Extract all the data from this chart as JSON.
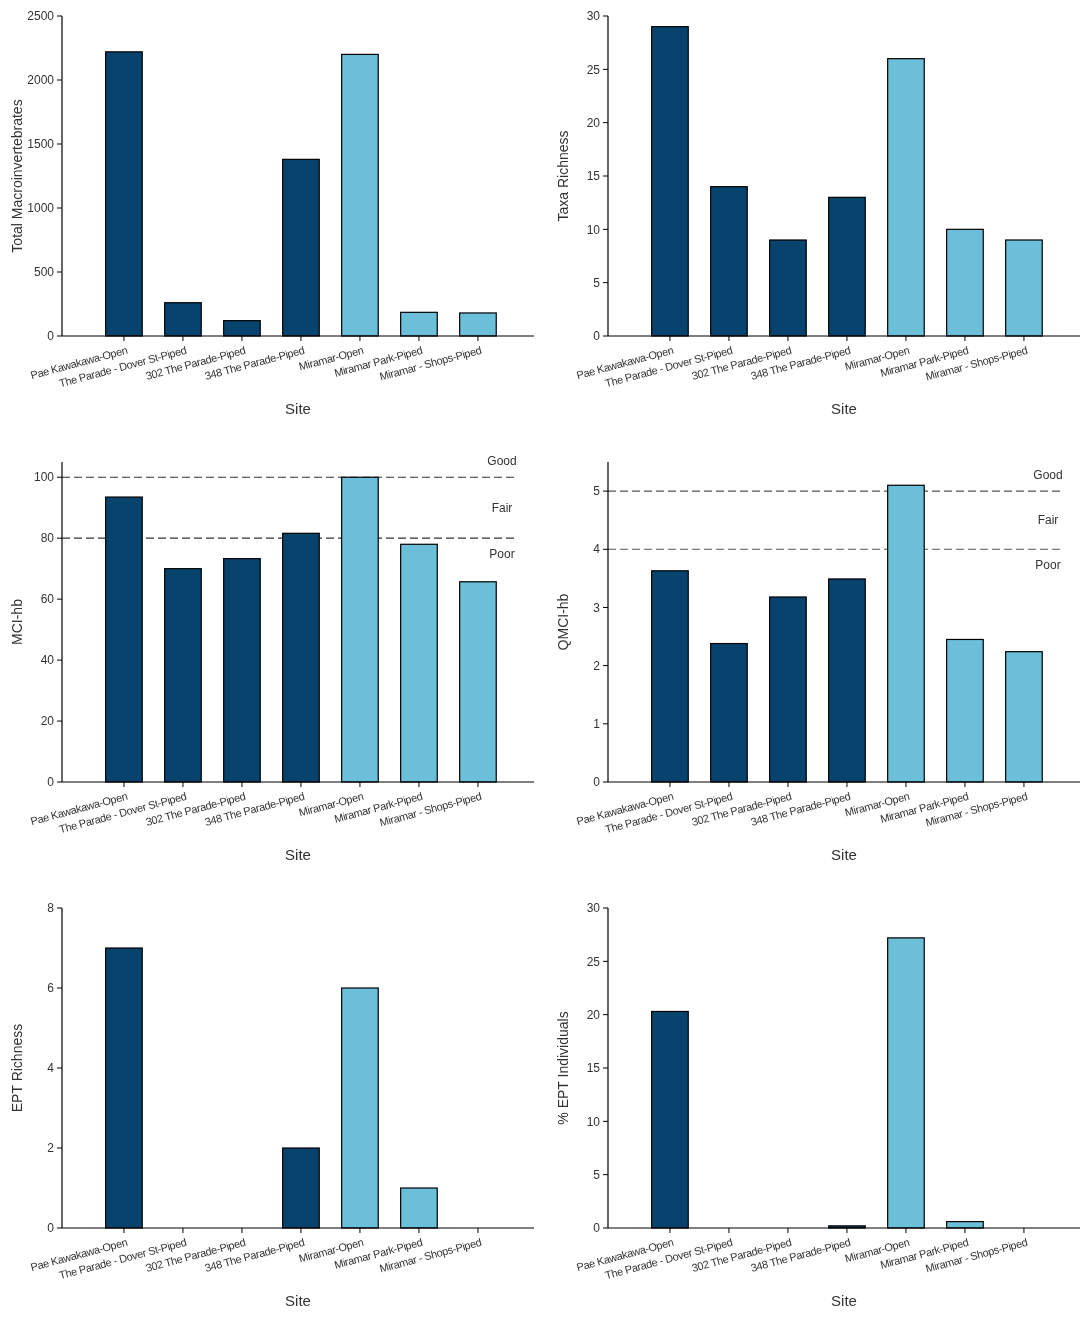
{
  "chart_data": [
    {
      "type": "bar",
      "categories": [
        "Pae Kawakawa-Open",
        "The Parade - Dover St-Piped",
        "302 The Parade-Piped",
        "348 The Parade-Piped",
        "Miramar-Open",
        "Miramar Park-Piped",
        "Miramar - Shops-Piped"
      ],
      "values": [
        2220,
        260,
        120,
        1380,
        2200,
        185,
        180
      ],
      "colors": [
        "#08436e",
        "#08436e",
        "#08436e",
        "#08436e",
        "#6bbfd8",
        "#6bbfd8",
        "#6bbfd8"
      ],
      "ylim": [
        0,
        2500
      ],
      "yticks": [
        0,
        500,
        1000,
        1500,
        2000,
        2500
      ],
      "xlabel": "Site",
      "ylabel": "Total Macroinvertebrates"
    },
    {
      "type": "bar",
      "categories": [
        "Pae Kawakawa-Open",
        "The Parade - Dover St-Piped",
        "302 The Parade-Piped",
        "348 The Parade-Piped",
        "Miramar-Open",
        "Miramar Park-Piped",
        "Miramar - Shops-Piped"
      ],
      "values": [
        29,
        14,
        9,
        13,
        26,
        10,
        9
      ],
      "colors": [
        "#08436e",
        "#08436e",
        "#08436e",
        "#08436e",
        "#6bbfd8",
        "#6bbfd8",
        "#6bbfd8"
      ],
      "ylim": [
        0,
        30
      ],
      "yticks": [
        0,
        5,
        10,
        15,
        20,
        25,
        30
      ],
      "xlabel": "Site",
      "ylabel": "Taxa Richness"
    },
    {
      "type": "bar",
      "categories": [
        "Pae Kawakawa-Open",
        "The Parade - Dover St-Piped",
        "302 The Parade-Piped",
        "348 The Parade-Piped",
        "Miramar-Open",
        "Miramar Park-Piped",
        "Miramar - Shops-Piped"
      ],
      "values": [
        93.5,
        70,
        73.3,
        81.6,
        100,
        78,
        65.7
      ],
      "colors": [
        "#08436e",
        "#08436e",
        "#08436e",
        "#08436e",
        "#6bbfd8",
        "#6bbfd8",
        "#6bbfd8"
      ],
      "ylim": [
        0,
        105
      ],
      "yticks": [
        0,
        20,
        40,
        60,
        80,
        100
      ],
      "xlabel": "Site",
      "ylabel": "MCI-hb",
      "ref_lines": [
        {
          "axis": "y",
          "value": 100,
          "line_style": "dashed",
          "color": "#333333"
        },
        {
          "axis": "y",
          "value": 80,
          "line_style": "dashed",
          "color": "#333333"
        }
      ],
      "annotations": [
        "Good",
        "Fair",
        "Poor"
      ]
    },
    {
      "type": "bar",
      "categories": [
        "Pae Kawakawa-Open",
        "The Parade - Dover St-Piped",
        "302 The Parade-Piped",
        "348 The Parade-Piped",
        "Miramar-Open",
        "Miramar Park-Piped",
        "Miramar - Shops-Piped"
      ],
      "values": [
        3.63,
        2.38,
        3.18,
        3.49,
        5.1,
        2.45,
        2.24
      ],
      "colors": [
        "#08436e",
        "#08436e",
        "#08436e",
        "#08436e",
        "#6bbfd8",
        "#6bbfd8",
        "#6bbfd8"
      ],
      "ylim": [
        0,
        5.5
      ],
      "yticks": [
        0,
        1,
        2,
        3,
        4,
        5
      ],
      "xlabel": "Site",
      "ylabel": "QMCI-hb",
      "ref_lines": [
        {
          "axis": "y",
          "value": 5,
          "line_style": "dashed",
          "color": "#555555"
        },
        {
          "axis": "y",
          "value": 4,
          "line_style": "dashed",
          "color": "#555555"
        }
      ],
      "annotations": [
        "Good",
        "Fair",
        "Poor"
      ]
    },
    {
      "type": "bar",
      "categories": [
        "Pae Kawakawa-Open",
        "The Parade - Dover St-Piped",
        "302 The Parade-Piped",
        "348 The Parade-Piped",
        "Miramar-Open",
        "Miramar Park-Piped",
        "Miramar - Shops-Piped"
      ],
      "values": [
        7,
        0,
        0,
        2,
        6,
        1,
        0
      ],
      "colors": [
        "#08436e",
        "#08436e",
        "#08436e",
        "#08436e",
        "#6bbfd8",
        "#6bbfd8",
        "#6bbfd8"
      ],
      "ylim": [
        0,
        8
      ],
      "yticks": [
        0,
        2,
        4,
        6,
        8
      ],
      "xlabel": "Site",
      "ylabel": "EPT Richness"
    },
    {
      "type": "bar",
      "categories": [
        "Pae Kawakawa-Open",
        "The Parade - Dover St-Piped",
        "302 The Parade-Piped",
        "348 The Parade-Piped",
        "Miramar-Open",
        "Miramar Park-Piped",
        "Miramar - Shops-Piped"
      ],
      "values": [
        20.3,
        0,
        0,
        0.2,
        27.2,
        0.6,
        0
      ],
      "colors": [
        "#08436e",
        "#08436e",
        "#08436e",
        "#08436e",
        "#6bbfd8",
        "#6bbfd8",
        "#6bbfd8"
      ],
      "ylim": [
        0,
        30
      ],
      "yticks": [
        0,
        5,
        10,
        15,
        20,
        25,
        30
      ],
      "xlabel": "Site",
      "ylabel": "% EPT Individuals"
    }
  ]
}
